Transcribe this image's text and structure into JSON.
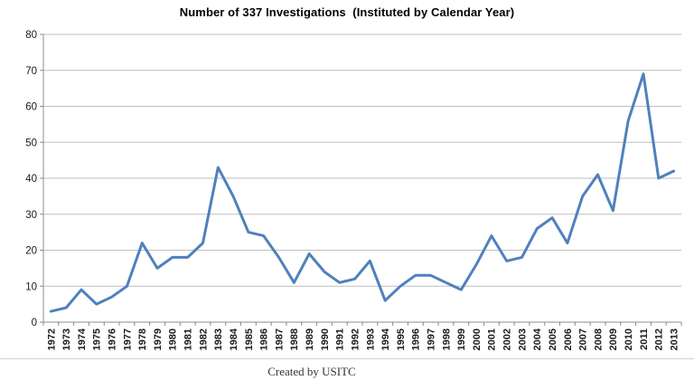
{
  "chart_data": {
    "type": "line",
    "title": "Number of 337 Investigations  (Instituted by Calendar Year)",
    "x": [
      "1972",
      "1973",
      "1974",
      "1975",
      "1976",
      "1977",
      "1978",
      "1979",
      "1980",
      "1981",
      "1982",
      "1983",
      "1984",
      "1985",
      "1986",
      "1987",
      "1988",
      "1989",
      "1990",
      "1991",
      "1992",
      "1993",
      "1994",
      "1995",
      "1996",
      "1997",
      "1998",
      "1999",
      "2000",
      "2001",
      "2002",
      "2003",
      "2004",
      "2005",
      "2006",
      "2007",
      "2008",
      "2009",
      "2010",
      "2011",
      "2012",
      "2013"
    ],
    "values": [
      3,
      4,
      9,
      5,
      7,
      10,
      22,
      15,
      18,
      18,
      22,
      43,
      35,
      25,
      24,
      18,
      11,
      19,
      14,
      11,
      12,
      17,
      6,
      10,
      13,
      13,
      11,
      9,
      16,
      24,
      17,
      18,
      26,
      29,
      22,
      35,
      41,
      31,
      56,
      69,
      40,
      42
    ],
    "xlabel": "",
    "ylabel": "",
    "ylim": [
      0,
      80
    ],
    "ytick_step": 10,
    "grid": "horizontal",
    "legend": "none",
    "colors": {
      "line": "#4F81BD",
      "gridline": "#BFBFBF",
      "axis": "#8C8C8C",
      "tick_text": "#1A1A1A"
    }
  },
  "footer": {
    "credit": "Created by USITC"
  }
}
